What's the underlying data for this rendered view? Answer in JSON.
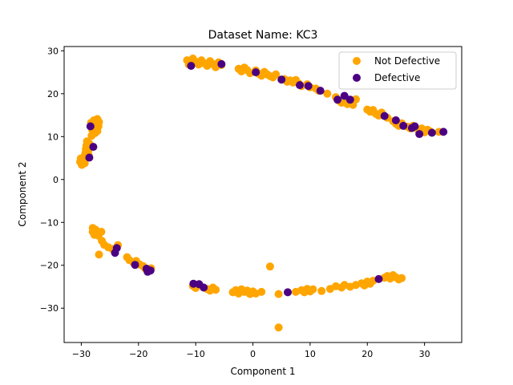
{
  "chart_data": {
    "type": "scatter",
    "title": "Dataset Name: KC3",
    "xlabel": "Component 1",
    "ylabel": "Component 2",
    "xlim": [
      -33,
      36.5
    ],
    "ylim": [
      -38,
      31
    ],
    "xticks": [
      -30,
      -20,
      -10,
      0,
      10,
      20,
      30
    ],
    "yticks": [
      -30,
      -20,
      -10,
      0,
      10,
      20,
      30
    ],
    "grid": false,
    "legend_position": "top-right",
    "series": [
      {
        "name": "Not Defective",
        "color": "#FFA500",
        "points": [
          [
            -11.5,
            27.8
          ],
          [
            -11.2,
            26.8
          ],
          [
            -10.5,
            28.2
          ],
          [
            -10,
            27.5
          ],
          [
            -9.5,
            26.8
          ],
          [
            -9,
            27.8
          ],
          [
            -8.5,
            27.1
          ],
          [
            -8,
            26.5
          ],
          [
            -7.5,
            27.6
          ],
          [
            -7,
            26.9
          ],
          [
            -6.5,
            26.2
          ],
          [
            -6,
            27.3
          ],
          [
            -5.5,
            26.7
          ],
          [
            -2.5,
            25.8
          ],
          [
            -2,
            25.2
          ],
          [
            -1.5,
            26.1
          ],
          [
            -1,
            25.5
          ],
          [
            -0.5,
            24.8
          ],
          [
            0.5,
            25.4
          ],
          [
            1,
            24.7
          ],
          [
            1.5,
            24.2
          ],
          [
            2,
            25.1
          ],
          [
            2.5,
            24.5
          ],
          [
            3,
            24.1
          ],
          [
            3.5,
            23.8
          ],
          [
            4,
            24.5
          ],
          [
            5.5,
            23.4
          ],
          [
            6,
            22.8
          ],
          [
            6.5,
            23.1
          ],
          [
            7,
            22.6
          ],
          [
            7.5,
            23.2
          ],
          [
            8,
            22.4
          ],
          [
            8.5,
            21.8
          ],
          [
            9.5,
            22.2
          ],
          [
            10,
            21.5
          ],
          [
            11,
            21.2
          ],
          [
            11.5,
            20.7
          ],
          [
            13,
            20
          ],
          [
            14.5,
            19.2
          ],
          [
            15,
            18.4
          ],
          [
            15.5,
            17.9
          ],
          [
            16,
            18.9
          ],
          [
            16.5,
            17.6
          ],
          [
            17,
            18.2
          ],
          [
            17.5,
            17.4
          ],
          [
            18,
            18.7
          ],
          [
            20,
            16.3
          ],
          [
            20.5,
            15.8
          ],
          [
            21,
            16.2
          ],
          [
            21.5,
            15.3
          ],
          [
            22,
            14.9
          ],
          [
            22.5,
            15.6
          ],
          [
            23.5,
            14.4
          ],
          [
            24.5,
            13.6
          ],
          [
            25,
            13
          ],
          [
            25.5,
            12.5
          ],
          [
            26,
            13.1
          ],
          [
            27,
            12.3
          ],
          [
            27.5,
            11.9
          ],
          [
            28,
            12.5
          ],
          [
            29,
            11.3
          ],
          [
            29.5,
            11.9
          ],
          [
            30,
            11
          ],
          [
            30.5,
            11.6
          ],
          [
            31,
            11.2
          ],
          [
            32.5,
            11.1
          ],
          [
            -28.3,
            13.2
          ],
          [
            -27.8,
            13.8
          ],
          [
            -27.2,
            14.1
          ],
          [
            -26.9,
            13.4
          ],
          [
            -27.4,
            12.8
          ],
          [
            -28,
            12.2
          ],
          [
            -27,
            12.4
          ],
          [
            -28.1,
            11.6
          ],
          [
            -27.2,
            11.3
          ],
          [
            -27.6,
            10.8
          ],
          [
            -28.2,
            10.2
          ],
          [
            -29,
            8.9
          ],
          [
            -28.6,
            8.4
          ],
          [
            -29.1,
            7.9
          ],
          [
            -28.4,
            7.6
          ],
          [
            -29.2,
            7.1
          ],
          [
            -28.8,
            6.6
          ],
          [
            -29.3,
            6.1
          ],
          [
            -28.7,
            5.6
          ],
          [
            -29.6,
            5.2
          ],
          [
            -30.1,
            4.9
          ],
          [
            -29.7,
            4.4
          ],
          [
            -30.2,
            4.1
          ],
          [
            -29.4,
            3.8
          ],
          [
            -29.9,
            3.4
          ],
          [
            -28,
            -11.3
          ],
          [
            -27.5,
            -11.7
          ],
          [
            -28,
            -12.2
          ],
          [
            -27.2,
            -12.5
          ],
          [
            -27.7,
            -12.9
          ],
          [
            -26.5,
            -12.2
          ],
          [
            -27,
            -13.1
          ],
          [
            -26.4,
            -14.3
          ],
          [
            -26,
            -15.2
          ],
          [
            -25.3,
            -15.8
          ],
          [
            -24.6,
            -16.2
          ],
          [
            -23.6,
            -15.3
          ],
          [
            -26.9,
            -17.5
          ],
          [
            -22,
            -18.1
          ],
          [
            -21.6,
            -18.8
          ],
          [
            -20.9,
            -19.4
          ],
          [
            -20.4,
            -19
          ],
          [
            -19.8,
            -19.8
          ],
          [
            -19.2,
            -20.2
          ],
          [
            -18.8,
            -20.8
          ],
          [
            -18.3,
            -21.4
          ],
          [
            -17.8,
            -20.7
          ],
          [
            -10.5,
            -24.8
          ],
          [
            -10,
            -25.3
          ],
          [
            -9.5,
            -24.6
          ],
          [
            -8,
            -25.5
          ],
          [
            -7.5,
            -25.9
          ],
          [
            -7,
            -25.2
          ],
          [
            -6.5,
            -25.7
          ],
          [
            -3.5,
            -26.3
          ],
          [
            -3,
            -25.8
          ],
          [
            -2.5,
            -26.6
          ],
          [
            -2,
            -25.6
          ],
          [
            -1.5,
            -26.2
          ],
          [
            -1,
            -25.9
          ],
          [
            -0.5,
            -26.7
          ],
          [
            0,
            -26.1
          ],
          [
            0.5,
            -26.6
          ],
          [
            1.5,
            -26.2
          ],
          [
            3,
            -20.3
          ],
          [
            4.5,
            -26.7
          ],
          [
            7.5,
            -26.2
          ],
          [
            8.5,
            -25.8
          ],
          [
            9,
            -26.3
          ],
          [
            9.5,
            -25.5
          ],
          [
            10,
            -26.1
          ],
          [
            10.5,
            -25.6
          ],
          [
            12,
            -26
          ],
          [
            13.5,
            -25.5
          ],
          [
            14.5,
            -24.9
          ],
          [
            15.5,
            -25.2
          ],
          [
            16,
            -24.6
          ],
          [
            17,
            -25
          ],
          [
            18,
            -24.6
          ],
          [
            19,
            -24.2
          ],
          [
            19.5,
            -24.7
          ],
          [
            20,
            -23.8
          ],
          [
            20.5,
            -24.3
          ],
          [
            21,
            -23.6
          ],
          [
            23,
            -22.9
          ],
          [
            23.5,
            -22.5
          ],
          [
            24,
            -23.1
          ],
          [
            24.5,
            -22.3
          ],
          [
            25,
            -22.8
          ],
          [
            25.5,
            -23.3
          ],
          [
            26,
            -23
          ],
          [
            4.5,
            -34.5
          ]
        ]
      },
      {
        "name": "Defective",
        "color": "#4B0082",
        "points": [
          [
            -10.8,
            26.5
          ],
          [
            -5.5,
            26.9
          ],
          [
            0.5,
            25
          ],
          [
            5,
            23.3
          ],
          [
            8.2,
            22
          ],
          [
            9.7,
            21.8
          ],
          [
            11.8,
            20.7
          ],
          [
            14.8,
            18.6
          ],
          [
            16,
            19.5
          ],
          [
            17,
            18.6
          ],
          [
            23,
            14.8
          ],
          [
            25,
            13.8
          ],
          [
            26.3,
            12.5
          ],
          [
            27.8,
            12
          ],
          [
            28.3,
            12.4
          ],
          [
            29.1,
            10.6
          ],
          [
            31.3,
            10.9
          ],
          [
            33.3,
            11.1
          ],
          [
            -28.4,
            12.4
          ],
          [
            -27.9,
            7.6
          ],
          [
            -28.6,
            5.1
          ],
          [
            -23.8,
            -16
          ],
          [
            -24.1,
            -17.1
          ],
          [
            -20.6,
            -19.9
          ],
          [
            -18.6,
            -20.8
          ],
          [
            -17.9,
            -21.2
          ],
          [
            -18.4,
            -21.5
          ],
          [
            -10.4,
            -24.3
          ],
          [
            -9.4,
            -24.4
          ],
          [
            -8.6,
            -25.2
          ],
          [
            6.1,
            -26.3
          ],
          [
            22,
            -23.2
          ]
        ]
      }
    ]
  }
}
